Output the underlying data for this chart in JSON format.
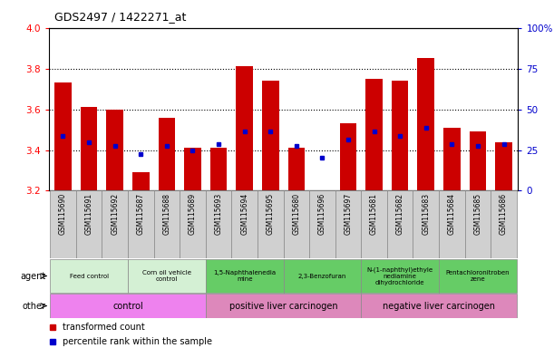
{
  "title": "GDS2497 / 1422271_at",
  "samples": [
    "GSM115690",
    "GSM115691",
    "GSM115692",
    "GSM115687",
    "GSM115688",
    "GSM115689",
    "GSM115693",
    "GSM115694",
    "GSM115695",
    "GSM115680",
    "GSM115696",
    "GSM115697",
    "GSM115681",
    "GSM115682",
    "GSM115683",
    "GSM115684",
    "GSM115685",
    "GSM115686"
  ],
  "bar_values": [
    3.73,
    3.61,
    3.6,
    3.29,
    3.56,
    3.41,
    3.41,
    3.81,
    3.74,
    3.41,
    3.2,
    3.53,
    3.75,
    3.74,
    3.85,
    3.51,
    3.49,
    3.44
  ],
  "percentile_values": [
    3.47,
    3.44,
    3.42,
    3.38,
    3.42,
    3.4,
    3.43,
    3.49,
    3.49,
    3.42,
    3.36,
    3.45,
    3.49,
    3.47,
    3.51,
    3.43,
    3.42,
    3.43
  ],
  "bar_color": "#cc0000",
  "percentile_color": "#0000cc",
  "ymin": 3.2,
  "ymax": 4.0,
  "yticks_left": [
    3.2,
    3.4,
    3.6,
    3.8,
    4.0
  ],
  "yticks_right": [
    0,
    25,
    50,
    75,
    100
  ],
  "dotted_lines": [
    3.4,
    3.6,
    3.8
  ],
  "agent_groups": [
    {
      "label": "Feed control",
      "start": 0,
      "end": 3,
      "color": "#d4f0d4"
    },
    {
      "label": "Corn oil vehicle\ncontrol",
      "start": 3,
      "end": 6,
      "color": "#d4f0d4"
    },
    {
      "label": "1,5-Naphthalenedia\nmine",
      "start": 6,
      "end": 9,
      "color": "#66cc66"
    },
    {
      "label": "2,3-Benzofuran",
      "start": 9,
      "end": 12,
      "color": "#66cc66"
    },
    {
      "label": "N-(1-naphthyl)ethyle\nnediamine\ndihydrochloride",
      "start": 12,
      "end": 15,
      "color": "#66cc66"
    },
    {
      "label": "Pentachloronitroben\nzene",
      "start": 15,
      "end": 18,
      "color": "#66cc66"
    }
  ],
  "other_groups": [
    {
      "label": "control",
      "start": 0,
      "end": 6,
      "color": "#ee82ee"
    },
    {
      "label": "positive liver carcinogen",
      "start": 6,
      "end": 12,
      "color": "#dd88bb"
    },
    {
      "label": "negative liver carcinogen",
      "start": 12,
      "end": 18,
      "color": "#dd88bb"
    }
  ],
  "legend_red": "transformed count",
  "legend_blue": "percentile rank within the sample"
}
